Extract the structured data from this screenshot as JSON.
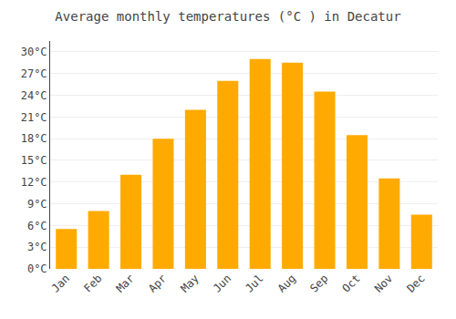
{
  "chart_data": {
    "type": "bar",
    "title": "Average monthly temperatures (°C ) in Decatur",
    "categories": [
      "Jan",
      "Feb",
      "Mar",
      "Apr",
      "May",
      "Jun",
      "Jul",
      "Aug",
      "Sep",
      "Oct",
      "Nov",
      "Dec"
    ],
    "values": [
      5.5,
      8.0,
      13.0,
      18.0,
      22.0,
      26.0,
      29.0,
      28.5,
      24.5,
      18.5,
      12.5,
      7.5
    ],
    "color": "#FFAA00",
    "ylim": [
      0,
      31.5
    ],
    "yticks": [
      {
        "value": 0,
        "label": "0°C"
      },
      {
        "value": 3,
        "label": "3°C"
      },
      {
        "value": 6,
        "label": "6°C"
      },
      {
        "value": 9,
        "label": "9°C"
      },
      {
        "value": 12,
        "label": "12°C"
      },
      {
        "value": 15,
        "label": "15°C"
      },
      {
        "value": 18,
        "label": "18°C"
      },
      {
        "value": 21,
        "label": "21°C"
      },
      {
        "value": 24,
        "label": "24°C"
      },
      {
        "value": 27,
        "label": "27°C"
      },
      {
        "value": 30,
        "label": "30°C"
      }
    ],
    "grid": true
  }
}
